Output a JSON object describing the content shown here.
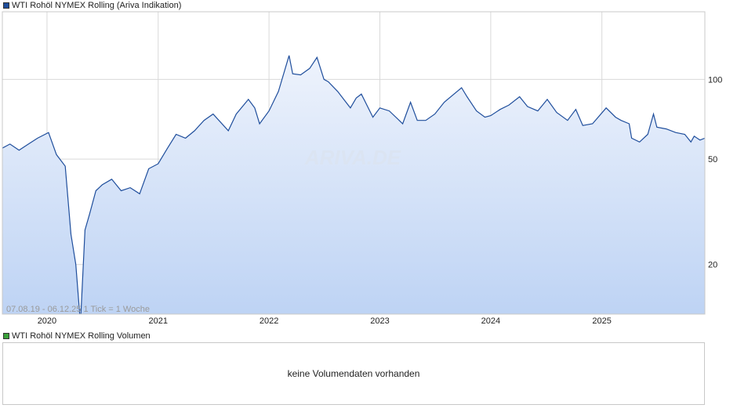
{
  "legend": {
    "price_label": "WTI Rohöl NYMEX Rolling (Ariva Indikation)",
    "price_color": "#1f4e9c",
    "volume_label": "WTI Rohöl NYMEX Rolling Volumen",
    "volume_color": "#3aa13a"
  },
  "watermark": "ARIVA.DE",
  "range_note": "07.08.19 - 06.12.25   1 Tick = 1 Woche",
  "volume_panel": {
    "message": "keine Volumendaten vorhanden"
  },
  "chart_data": {
    "type": "area",
    "scale": "log",
    "ylim": [
      13,
      180
    ],
    "yticks": [
      20,
      50,
      100
    ],
    "xlim": [
      "2019-08-07",
      "2025-12-06"
    ],
    "xticks": [
      "2020",
      "2021",
      "2022",
      "2023",
      "2024",
      "2025"
    ],
    "line_color": "#1f4e9c",
    "fill_top": "#eef3fc",
    "fill_bottom": "#bcd2f4",
    "grid": true,
    "x": [
      "2019-08-07",
      "2019-09-01",
      "2019-10-01",
      "2019-11-01",
      "2019-12-01",
      "2020-01-06",
      "2020-02-01",
      "2020-03-01",
      "2020-03-20",
      "2020-04-05",
      "2020-04-20",
      "2020-05-05",
      "2020-05-20",
      "2020-06-10",
      "2020-07-01",
      "2020-08-01",
      "2020-09-01",
      "2020-10-01",
      "2020-11-01",
      "2020-12-01",
      "2021-01-01",
      "2021-02-01",
      "2021-03-01",
      "2021-04-01",
      "2021-05-01",
      "2021-06-01",
      "2021-07-01",
      "2021-08-20",
      "2021-09-15",
      "2021-10-25",
      "2021-11-15",
      "2021-12-01",
      "2022-01-01",
      "2022-02-01",
      "2022-03-08",
      "2022-03-20",
      "2022-04-15",
      "2022-05-15",
      "2022-06-08",
      "2022-07-01",
      "2022-07-15",
      "2022-08-15",
      "2022-09-26",
      "2022-10-15",
      "2022-11-01",
      "2022-12-09",
      "2023-01-01",
      "2023-02-01",
      "2023-03-17",
      "2023-04-12",
      "2023-05-04",
      "2023-06-01",
      "2023-07-01",
      "2023-08-01",
      "2023-09-27",
      "2023-10-15",
      "2023-11-15",
      "2023-12-13",
      "2024-01-01",
      "2024-02-01",
      "2024-03-01",
      "2024-04-05",
      "2024-05-01",
      "2024-06-04",
      "2024-07-05",
      "2024-08-05",
      "2024-09-10",
      "2024-10-07",
      "2024-10-30",
      "2024-12-01",
      "2025-01-15",
      "2025-02-15",
      "2025-03-05",
      "2025-04-01",
      "2025-04-09",
      "2025-05-05",
      "2025-06-01",
      "2025-06-20",
      "2025-07-01",
      "2025-08-01",
      "2025-09-01",
      "2025-10-01",
      "2025-10-21",
      "2025-11-01",
      "2025-11-20",
      "2025-12-06"
    ],
    "values": [
      55,
      57,
      54,
      57,
      60,
      63,
      52,
      47,
      26,
      20,
      12,
      27,
      31,
      38,
      40,
      42,
      38,
      39,
      37,
      46,
      48,
      55,
      62,
      60,
      64,
      70,
      74,
      64,
      74,
      84,
      78,
      68,
      76,
      90,
      123,
      105,
      104,
      110,
      121,
      100,
      98,
      90,
      78,
      85,
      88,
      72,
      78,
      76,
      68,
      82,
      70,
      70,
      74,
      82,
      93,
      86,
      76,
      72,
      73,
      77,
      80,
      86,
      79,
      76,
      84,
      75,
      70,
      77,
      67,
      68,
      78,
      72,
      70,
      68,
      60,
      58,
      62,
      74,
      66,
      65,
      63,
      62,
      58,
      61,
      59,
      60
    ]
  }
}
